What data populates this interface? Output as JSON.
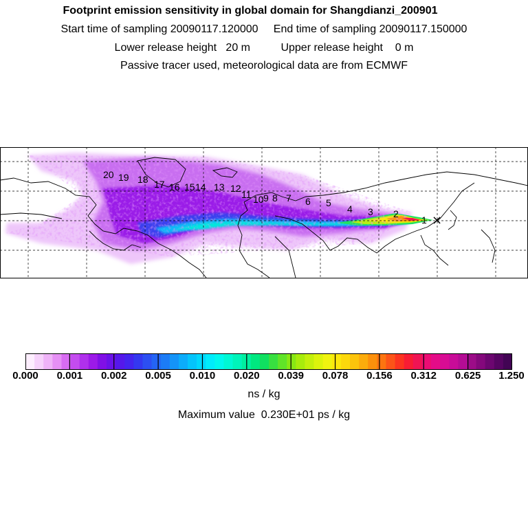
{
  "header": {
    "title": "Footprint emission sensitivity in global domain for Shangdianzi_200901",
    "sampling_line": "Start time of sampling 20090117.120000     End time of sampling 20090117.150000",
    "release_line": "Lower release height   20 m          Upper release height    0 m",
    "tracer_line": "Passive tracer used, meteorological data are from ECMWF"
  },
  "map": {
    "station_marker": "×",
    "trajectory_labels": [
      "1",
      "2",
      "3",
      "4",
      "5",
      "6",
      "7",
      "8",
      "9",
      "10",
      "11",
      "12",
      "13",
      "14",
      "15",
      "16",
      "17",
      "18",
      "19",
      "20"
    ]
  },
  "colorbar": {
    "tick_labels": [
      "0.000",
      "0.001",
      "0.002",
      "0.005",
      "0.010",
      "0.020",
      "0.039",
      "0.078",
      "0.156",
      "0.312",
      "0.625",
      "1.250"
    ],
    "colors": [
      "#fdeefe",
      "#f6d2fb",
      "#efb3f8",
      "#e690f5",
      "#d86cf2",
      "#c44cef",
      "#b030ec",
      "#9c1ae8",
      "#8010e6",
      "#6a12e8",
      "#5518ea",
      "#4424ee",
      "#3438f0",
      "#2c4ff2",
      "#2464f4",
      "#1c7cf6",
      "#1494f8",
      "#0cacfa",
      "#04c4fb",
      "#00d8fc",
      "#00ecfc",
      "#00f8ee",
      "#00f8d4",
      "#00f4ba",
      "#00f0a0",
      "#00e880",
      "#10e060",
      "#38e040",
      "#60e428",
      "#88e814",
      "#a8ec0c",
      "#c4f00c",
      "#dcf40c",
      "#f0f410",
      "#fce80c",
      "#fcd80c",
      "#fcc40c",
      "#fcac0c",
      "#fc900c",
      "#fc7410",
      "#fc5418",
      "#fc3420",
      "#f81c34",
      "#f01454",
      "#ec0c74",
      "#e40c88",
      "#d80c94",
      "#c80c98",
      "#b40c94",
      "#9c0c88",
      "#84087c",
      "#6c0670",
      "#560462",
      "#420454"
    ],
    "unit": "ns / kg",
    "max_value": "Maximum value  0.230E+01 ps / kg"
  }
}
